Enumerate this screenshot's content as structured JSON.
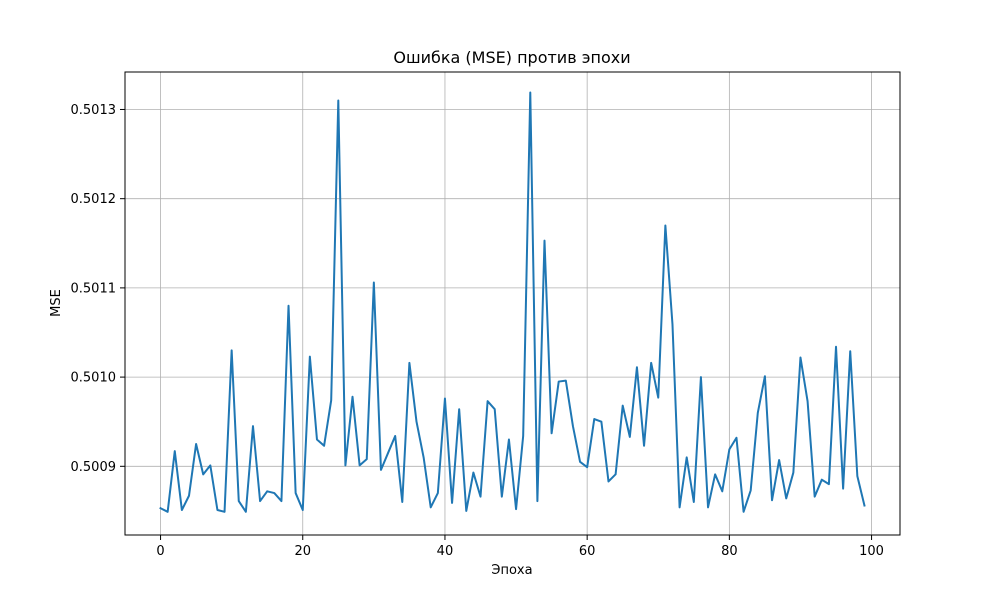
{
  "chart_data": {
    "type": "line",
    "title": "Ошибка (MSE) против эпохи",
    "xlabel": "Эпоха",
    "ylabel": "MSE",
    "xlim": [
      -5,
      104
    ],
    "ylim": [
      0.500823,
      0.501342
    ],
    "x_ticks": [
      0,
      20,
      40,
      60,
      80,
      100
    ],
    "x_tick_labels": [
      "0",
      "20",
      "40",
      "60",
      "80",
      "100"
    ],
    "y_ticks": [
      0.5009,
      0.501,
      0.5011,
      0.5012,
      0.5013
    ],
    "y_tick_labels": [
      "0.5009",
      "0.5010",
      "0.5011",
      "0.5012",
      "0.5013"
    ],
    "grid": true,
    "series": [
      {
        "color": "#1f77b4",
        "x": [
          0,
          1,
          2,
          3,
          4,
          5,
          6,
          7,
          8,
          9,
          10,
          11,
          12,
          13,
          14,
          15,
          16,
          17,
          18,
          19,
          20,
          21,
          22,
          23,
          24,
          25,
          26,
          27,
          28,
          29,
          30,
          31,
          32,
          33,
          34,
          35,
          36,
          37,
          38,
          39,
          40,
          41,
          42,
          43,
          44,
          45,
          46,
          47,
          48,
          49,
          50,
          51,
          52,
          53,
          54,
          55,
          56,
          57,
          58,
          59,
          60,
          61,
          62,
          63,
          64,
          65,
          66,
          67,
          68,
          69,
          70,
          71,
          72,
          73,
          74,
          75,
          76,
          77,
          78,
          79,
          80,
          81,
          82,
          83,
          84,
          85,
          86,
          87,
          88,
          89,
          90,
          91,
          92,
          93,
          94,
          95,
          96,
          97,
          98,
          99
        ],
        "values": [
          0.500853,
          0.500849,
          0.500917,
          0.500851,
          0.500867,
          0.500925,
          0.500891,
          0.500901,
          0.500851,
          0.500849,
          0.50103,
          0.500861,
          0.500849,
          0.500945,
          0.500861,
          0.500872,
          0.50087,
          0.500861,
          0.50108,
          0.50087,
          0.500851,
          0.501023,
          0.50093,
          0.500923,
          0.500974,
          0.50131,
          0.500901,
          0.500978,
          0.500901,
          0.500908,
          0.501106,
          0.500896,
          0.500915,
          0.500934,
          0.50086,
          0.501016,
          0.50095,
          0.50091,
          0.500854,
          0.50087,
          0.500976,
          0.500859,
          0.500964,
          0.50085,
          0.500893,
          0.500866,
          0.500973,
          0.500964,
          0.500866,
          0.50093,
          0.500852,
          0.500934,
          0.501319,
          0.500861,
          0.501153,
          0.500937,
          0.500995,
          0.500996,
          0.500945,
          0.500905,
          0.500899,
          0.500953,
          0.50095,
          0.500883,
          0.500891,
          0.500968,
          0.500933,
          0.501011,
          0.500923,
          0.501016,
          0.500977,
          0.50117,
          0.501059,
          0.500854,
          0.50091,
          0.50086,
          0.501,
          0.500854,
          0.500891,
          0.500872,
          0.500919,
          0.500932,
          0.500849,
          0.500873,
          0.50096,
          0.501001,
          0.500862,
          0.500907,
          0.500864,
          0.500893,
          0.501022,
          0.500973,
          0.500866,
          0.500885,
          0.50088,
          0.501034,
          0.500875,
          0.501029,
          0.500889,
          0.500856
        ]
      }
    ]
  }
}
